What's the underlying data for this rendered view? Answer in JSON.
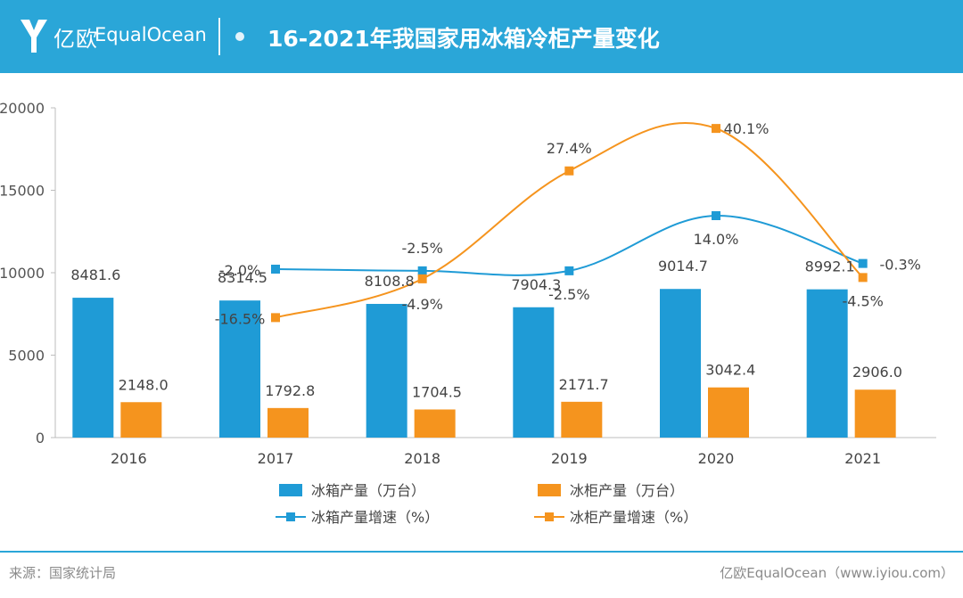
{
  "header": {
    "logo_cn": "亿欧",
    "logo_en": "EqualOcean",
    "title": "16-2021年我国家用冰箱冷柜产量变化"
  },
  "chart_data": {
    "type": "bar",
    "categories": [
      "2016",
      "2017",
      "2018",
      "2019",
      "2020",
      "2021"
    ],
    "ylim": [
      0,
      20000
    ],
    "yticks": [
      0,
      5000,
      10000,
      15000,
      20000
    ],
    "grid": false,
    "legend_position": "bottom",
    "series": [
      {
        "name": "冰箱产量（万台）",
        "kind": "bar",
        "color": "#1f9bd6",
        "values": [
          8481.6,
          8314.5,
          8108.8,
          7904.3,
          9014.7,
          8992.1
        ],
        "labels": [
          "8481.6",
          "8314.5",
          "8108.8",
          "7904.3",
          "9014.7",
          "8992.1"
        ]
      },
      {
        "name": "冰柜产量（万台）",
        "kind": "bar",
        "color": "#f5941e",
        "values": [
          2148.0,
          1792.8,
          1704.5,
          2171.7,
          3042.4,
          2906.0
        ],
        "labels": [
          "2148.0",
          "1792.8",
          "1704.5",
          "2171.7",
          "3042.4",
          "2906.0"
        ]
      },
      {
        "name": "冰箱产量增速（%）",
        "kind": "line",
        "color": "#1f9bd6",
        "x": [
          "2017",
          "2018",
          "2019",
          "2020",
          "2021"
        ],
        "values": [
          -2.0,
          -2.5,
          -2.5,
          14.0,
          -0.3
        ],
        "labels": [
          "-2.0%",
          "-2.5%",
          "-2.5%",
          "14.0%",
          "-0.3%"
        ]
      },
      {
        "name": "冰柜产量增速（%）",
        "kind": "line",
        "color": "#f5941e",
        "x": [
          "2017",
          "2018",
          "2019",
          "2020",
          "2021"
        ],
        "values": [
          -16.5,
          -4.9,
          27.4,
          40.1,
          -4.5
        ],
        "labels": [
          "-16.5%",
          "-4.9%",
          "27.4%",
          "40.1%",
          "-4.5%"
        ]
      }
    ]
  },
  "footer": {
    "source": "来源：国家统计局",
    "brand": "亿欧EqualOcean（www.iyiou.com）"
  }
}
